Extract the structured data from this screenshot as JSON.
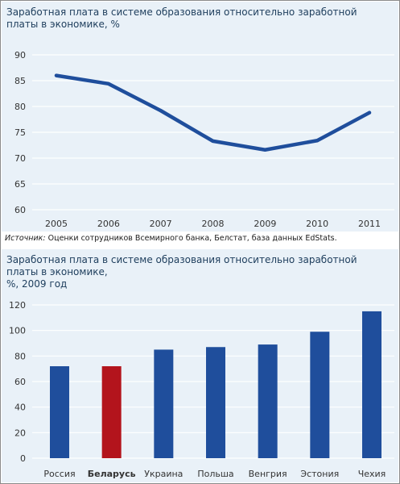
{
  "charts": {
    "chart1_title": "Заработная плата в системе образования относительно заработной платы в экономике, %",
    "source_label": "Источник:",
    "source_text": " Оценки сотрудников Всемирного банка, Белстат, база данных EdStats.",
    "chart2_title_line1": "Заработная плата в системе образования относительно заработной платы в экономике,",
    "chart2_title_line2": "%, 2009 год"
  },
  "colors": {
    "panel_bg": "#e9f1f8",
    "line": "#1f4e9c",
    "bar": "#1f4e9c",
    "highlight_bar": "#b3141c",
    "gridline": "#ffffff"
  },
  "chart_data": [
    {
      "type": "line",
      "x": [
        "2005",
        "2006",
        "2007",
        "2008",
        "2009",
        "2010",
        "2011"
      ],
      "series": [
        {
          "values": [
            86.0,
            84.4,
            79.2,
            73.3,
            71.6,
            73.4,
            78.8
          ]
        }
      ],
      "yticks": [
        "60",
        "65",
        "70",
        "75",
        "80",
        "85",
        "90"
      ],
      "ylim": [
        60,
        90
      ],
      "grid": true
    },
    {
      "type": "bar",
      "categories": [
        "Россия",
        "Беларусь",
        "Украина",
        "Польша",
        "Венгрия",
        "Эстония",
        "Чехия"
      ],
      "values": [
        72,
        72,
        85,
        87,
        89,
        99,
        115
      ],
      "highlight": "Беларусь",
      "yticks": [
        "0",
        "20",
        "40",
        "60",
        "80",
        "100",
        "120"
      ],
      "ylim": [
        0,
        120
      ],
      "grid": true
    }
  ]
}
